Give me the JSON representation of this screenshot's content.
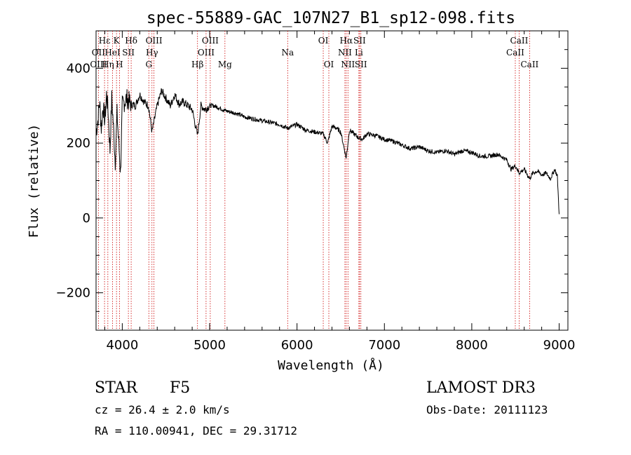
{
  "chart_data": {
    "type": "line",
    "title": "spec-55889-GAC_107N27_B1_sp12-098.fits",
    "xlabel": "Wavelength (Å)",
    "ylabel": "Flux (relative)",
    "xlim": [
      3700,
      9100
    ],
    "ylim": [
      -300,
      500
    ],
    "xticks": [
      4000,
      5000,
      6000,
      7000,
      8000,
      9000
    ],
    "yticks": [
      -200,
      0,
      200,
      400
    ],
    "grid": false,
    "series": [
      {
        "name": "flux",
        "x": [
          3700,
          3720,
          3740,
          3760,
          3780,
          3800,
          3820,
          3840,
          3860,
          3880,
          3900,
          3920,
          3940,
          3960,
          3980,
          4000,
          4050,
          4100,
          4150,
          4200,
          4250,
          4300,
          4340,
          4400,
          4450,
          4500,
          4550,
          4600,
          4650,
          4700,
          4750,
          4800,
          4861,
          4900,
          4950,
          5000,
          5050,
          5100,
          5150,
          5200,
          5300,
          5400,
          5500,
          5600,
          5700,
          5800,
          5890,
          5950,
          6000,
          6100,
          6200,
          6300,
          6350,
          6400,
          6450,
          6500,
          6563,
          6600,
          6650,
          6700,
          6750,
          6800,
          6900,
          7000,
          7100,
          7200,
          7300,
          7400,
          7500,
          7600,
          7700,
          7800,
          7900,
          8000,
          8100,
          8200,
          8300,
          8400,
          8450,
          8500,
          8542,
          8600,
          8662,
          8700,
          8750,
          8800,
          8850,
          8900,
          8950,
          8980,
          9000
        ],
        "y": [
          230,
          260,
          310,
          240,
          300,
          260,
          330,
          280,
          180,
          320,
          240,
          150,
          280,
          200,
          120,
          300,
          320,
          305,
          300,
          330,
          310,
          300,
          230,
          300,
          340,
          320,
          300,
          330,
          305,
          310,
          300,
          290,
          220,
          300,
          290,
          300,
          300,
          295,
          290,
          285,
          280,
          270,
          265,
          260,
          255,
          250,
          240,
          245,
          250,
          235,
          230,
          225,
          200,
          245,
          240,
          230,
          160,
          235,
          225,
          215,
          210,
          225,
          220,
          210,
          205,
          195,
          185,
          190,
          180,
          175,
          180,
          170,
          180,
          175,
          165,
          165,
          170,
          155,
          130,
          140,
          120,
          130,
          105,
          120,
          125,
          115,
          120,
          105,
          130,
          110,
          10
        ]
      }
    ],
    "line_markers": [
      {
        "label": "Hε",
        "wl": 3797,
        "row": 1
      },
      {
        "label": "OII",
        "wl": 3727,
        "row": 2
      },
      {
        "label": "OIII",
        "wl": 3727,
        "row": 3
      },
      {
        "label": "Hη",
        "wl": 3835,
        "row": 3
      },
      {
        "label": "K",
        "wl": 3934,
        "row": 1
      },
      {
        "label": "HeI",
        "wl": 3889,
        "row": 2
      },
      {
        "label": "H",
        "wl": 3968,
        "row": 3
      },
      {
        "label": "SII",
        "wl": 4070,
        "row": 2
      },
      {
        "label": "Hδ",
        "wl": 4102,
        "row": 1
      },
      {
        "label": "OIII",
        "wl": 4363,
        "row": 1
      },
      {
        "label": "Hγ",
        "wl": 4340,
        "row": 2
      },
      {
        "label": "G",
        "wl": 4304,
        "row": 3
      },
      {
        "label": "Hβ",
        "wl": 4861,
        "row": 3
      },
      {
        "label": "OIII",
        "wl": 5007,
        "row": 1
      },
      {
        "label": "OIII",
        "wl": 4959,
        "row": 2
      },
      {
        "label": "Mg",
        "wl": 5175,
        "row": 3
      },
      {
        "label": "Na",
        "wl": 5893,
        "row": 2
      },
      {
        "label": "OI",
        "wl": 6300,
        "row": 1
      },
      {
        "label": "OI",
        "wl": 6364,
        "row": 3
      },
      {
        "label": "Hα",
        "wl": 6563,
        "row": 1
      },
      {
        "label": "SII",
        "wl": 6716,
        "row": 1
      },
      {
        "label": "NII",
        "wl": 6548,
        "row": 2
      },
      {
        "label": "Li",
        "wl": 6708,
        "row": 2
      },
      {
        "label": "NII",
        "wl": 6583,
        "row": 3
      },
      {
        "label": "SII",
        "wl": 6731,
        "row": 3
      },
      {
        "label": "CaII",
        "wl": 8542,
        "row": 1
      },
      {
        "label": "CaII",
        "wl": 8498,
        "row": 2
      },
      {
        "label": "CaII",
        "wl": 8662,
        "row": 3
      }
    ],
    "annotations": {
      "class": "STAR",
      "subclass": "F5",
      "cz": "cz = 26.4 ± 2.0 km/s",
      "radec": "RA = 110.00941, DEC =  29.31712",
      "survey": "LAMOST DR3",
      "obsdate": "Obs-Date: 20111123"
    }
  }
}
